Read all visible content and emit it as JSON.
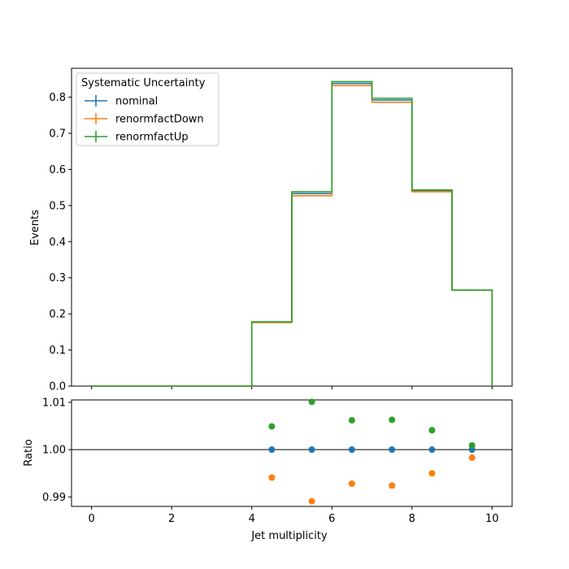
{
  "chart_data": {
    "type": "step-histogram-with-ratio",
    "legend": {
      "title": "Systematic Uncertainty",
      "placement": "top-left"
    },
    "top_panel": {
      "ylabel": "Events",
      "xlim": [
        -0.5,
        10.5
      ],
      "ylim": [
        0,
        0.88
      ],
      "yticks": [
        "0.0",
        "0.1",
        "0.2",
        "0.3",
        "0.4",
        "0.5",
        "0.6",
        "0.7",
        "0.8"
      ],
      "bin_edges": [
        0,
        1,
        2,
        3,
        4,
        5,
        6,
        7,
        8,
        9,
        10
      ],
      "series": [
        {
          "name": "nominal",
          "color": "#1f77b4",
          "values": [
            0,
            0,
            0,
            0,
            0.177,
            0.533,
            0.838,
            0.792,
            0.541,
            0.266
          ]
        },
        {
          "name": "renormfactDown",
          "color": "#ff7f0e",
          "values": [
            0,
            0,
            0,
            0,
            0.176,
            0.527,
            0.832,
            0.786,
            0.538,
            0.266
          ]
        },
        {
          "name": "renormfactUp",
          "color": "#2ca02c",
          "values": [
            0,
            0,
            0,
            0,
            0.178,
            0.538,
            0.843,
            0.797,
            0.543,
            0.266
          ]
        }
      ]
    },
    "ratio_panel": {
      "ylabel": "Ratio",
      "xlabel": "Jet multiplicity",
      "ylim": [
        0.988,
        1.0105
      ],
      "yticks": [
        "0.99",
        "1.00",
        "1.01"
      ],
      "reference_line": 1.0,
      "x": [
        4.5,
        5.5,
        6.5,
        7.5,
        8.5,
        9.5
      ],
      "series": [
        {
          "name": "nominal",
          "color": "#1f77b4",
          "values": [
            1.0,
            1.0,
            1.0,
            1.0,
            1.0,
            1.0
          ]
        },
        {
          "name": "renormfactDown",
          "color": "#ff7f0e",
          "values": [
            0.9941,
            0.9891,
            0.9928,
            0.9924,
            0.995,
            0.9983
          ]
        },
        {
          "name": "renormfactUp",
          "color": "#2ca02c",
          "values": [
            1.0049,
            1.0101,
            1.0062,
            1.0063,
            1.0041,
            1.0009
          ]
        }
      ]
    },
    "xticks": [
      "0",
      "2",
      "4",
      "6",
      "8",
      "10"
    ]
  }
}
